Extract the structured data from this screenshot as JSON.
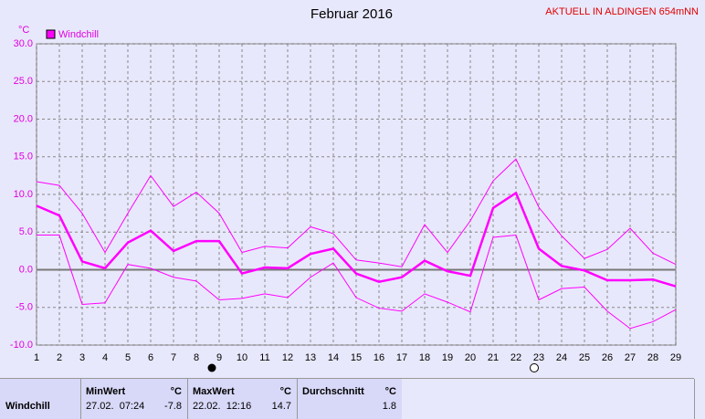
{
  "chart_data": {
    "type": "line",
    "title": "Februar 2016",
    "subtitle": "AKTUELL IN ALDINGEN 654mNN",
    "y_label": "°C",
    "x": [
      1,
      2,
      3,
      4,
      5,
      6,
      7,
      8,
      9,
      10,
      11,
      12,
      13,
      14,
      15,
      16,
      17,
      18,
      19,
      20,
      21,
      22,
      23,
      24,
      25,
      26,
      27,
      28,
      29
    ],
    "xlim": [
      1,
      29
    ],
    "xticks": [
      1,
      2,
      3,
      4,
      5,
      6,
      7,
      8,
      9,
      10,
      11,
      12,
      13,
      14,
      15,
      16,
      17,
      18,
      19,
      20,
      21,
      22,
      23,
      24,
      25,
      26,
      27,
      28,
      29
    ],
    "ylim": [
      -10,
      30
    ],
    "yticks": [
      {
        "value": -10,
        "label": "-10.0"
      },
      {
        "value": -5,
        "label": "-5.0"
      },
      {
        "value": 0,
        "label": "0.0"
      },
      {
        "value": 5,
        "label": "5.0"
      },
      {
        "value": 10,
        "label": "10.0"
      },
      {
        "value": 15,
        "label": "15.0"
      },
      {
        "value": 20,
        "label": "20.0"
      },
      {
        "value": 25,
        "label": "25.0"
      },
      {
        "value": 30,
        "label": "30.0"
      }
    ],
    "grid": true,
    "series": [
      {
        "name": "Windchill",
        "color": "#ff00ff",
        "values": [
          8.5,
          7.2,
          1.1,
          0.2,
          3.6,
          5.2,
          2.5,
          3.8,
          3.8,
          -0.5,
          0.3,
          0.2,
          2.1,
          2.8,
          -0.5,
          -1.6,
          -1.0,
          1.2,
          -0.2,
          -0.8,
          8.2,
          10.2,
          2.8,
          0.5,
          -0.1,
          -1.4,
          -1.4,
          -1.3,
          -2.2
        ]
      },
      {
        "color": "#ff00ff",
        "values": [
          11.7,
          11.2,
          7.5,
          2.3,
          7.5,
          12.5,
          8.4,
          10.3,
          7.5,
          2.3,
          3.1,
          2.9,
          5.7,
          4.8,
          1.3,
          0.9,
          0.4,
          6.0,
          2.3,
          6.5,
          11.8,
          14.7,
          8.3,
          4.5,
          1.5,
          2.7,
          5.5,
          2.2,
          0.7
        ]
      },
      {
        "color": "#ff00ff",
        "values": [
          4.6,
          4.6,
          -4.6,
          -4.4,
          0.7,
          0.2,
          -1.0,
          -1.5,
          -4.0,
          -3.8,
          -3.2,
          -3.7,
          -1.0,
          0.9,
          -3.7,
          -5.1,
          -5.5,
          -3.2,
          -4.3,
          -5.6,
          4.3,
          4.6,
          -4.0,
          -2.5,
          -2.3,
          -5.5,
          -7.8,
          -6.9,
          -5.3
        ]
      }
    ]
  },
  "stats": {
    "row_label": "Windchill",
    "min": {
      "header": "MinWert",
      "unit": "°C",
      "time": "27.02.  07:24",
      "value": -7.8
    },
    "max": {
      "header": "MaxWert",
      "unit": "°C",
      "time": "22.02.  12:16",
      "value": 14.7
    },
    "avg": {
      "header": "Durchschnitt",
      "unit": "°C",
      "value": 1.8
    }
  }
}
